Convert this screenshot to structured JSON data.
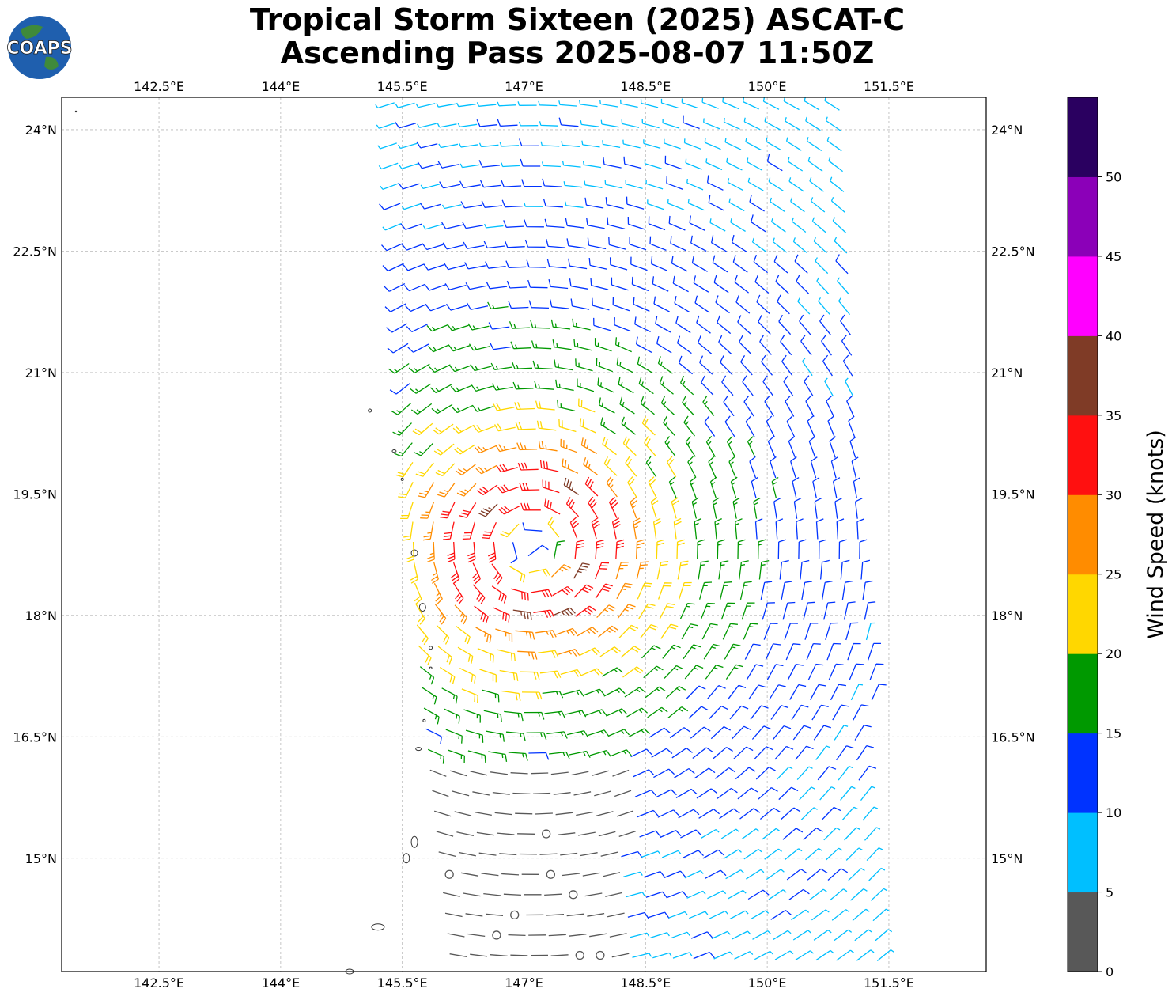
{
  "title_line1": "Tropical Storm Sixteen (2025) ASCAT-C",
  "title_line2": "Ascending Pass 2025-08-07 11:50Z",
  "logo_text": "COAPS",
  "chart_data": {
    "type": "wind-barb-map",
    "x_ticks": [
      "142.5°E",
      "144°E",
      "145.5°E",
      "147°E",
      "148.5°E",
      "150°E",
      "151.5°E"
    ],
    "x_tick_values": [
      142.5,
      144,
      145.5,
      147,
      148.5,
      150,
      151.5
    ],
    "y_ticks": [
      "24°N",
      "22.5°N",
      "21°N",
      "19.5°N",
      "18°N",
      "16.5°N",
      "15°N"
    ],
    "y_tick_values": [
      24,
      22.5,
      21,
      19.5,
      18,
      16.5,
      15
    ],
    "xlim": [
      141.3,
      152.7
    ],
    "ylim": [
      13.6,
      24.4
    ],
    "grid": true,
    "storm_center": {
      "lon": 147.1,
      "lat": 18.85
    },
    "swath_lon_range": [
      145.3,
      151.9
    ],
    "colorbar": {
      "label": "Wind Speed (knots)",
      "bounds": [
        0,
        5,
        10,
        15,
        20,
        25,
        30,
        35,
        40,
        45,
        50,
        55
      ],
      "tick_labels": [
        "0",
        "5",
        "10",
        "15",
        "20",
        "25",
        "30",
        "35",
        "40",
        "45",
        "50"
      ],
      "colors": [
        "#585858",
        "#00bfff",
        "#0033ff",
        "#009900",
        "#ffd700",
        "#ff8c00",
        "#ff1010",
        "#7f3b26",
        "#ff00ff",
        "#8b00b8",
        "#2a0060"
      ]
    }
  }
}
